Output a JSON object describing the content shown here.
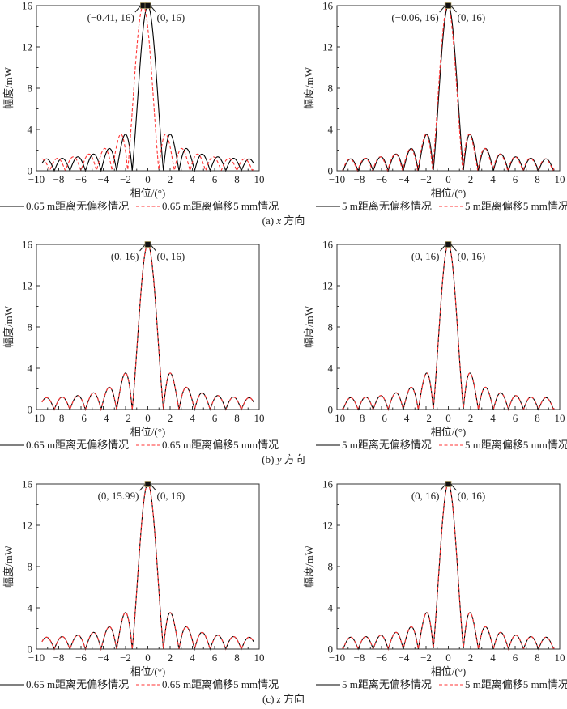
{
  "chart_data": [
    {
      "type": "line",
      "panel": "a-left",
      "xlabel": "相位/(°)",
      "ylabel": "幅度/mW",
      "xlim": [
        -10,
        10
      ],
      "ylim": [
        0,
        16
      ],
      "xtick_labels": [
        "−10",
        "−8",
        "−6",
        "−4",
        "−2",
        "0",
        "2",
        "4",
        "6",
        "8",
        "10"
      ],
      "ytick_labels": [
        "0",
        "4",
        "8",
        "12",
        "16"
      ],
      "series": [
        {
          "name": "0.65 m距离无偏移情况",
          "color": "#000000",
          "style": "solid",
          "peak": 16,
          "peak_x": 0,
          "null_spacing": 1.4,
          "x_range": [
            -9.5,
            9.5
          ]
        },
        {
          "name": "0.65 m距离偏移5 mm情况",
          "color": "#ff3333",
          "style": "dashed",
          "peak": 16,
          "peak_x": -0.41,
          "null_spacing": 1.4,
          "x_range": [
            -9.5,
            9.5
          ]
        }
      ],
      "annotations": [
        {
          "text": "(−0.41, 16)",
          "x": -0.41,
          "y": 16,
          "side": "left"
        },
        {
          "text": "(0, 16)",
          "x": 0,
          "y": 16,
          "side": "right"
        }
      ]
    },
    {
      "type": "line",
      "panel": "a-right",
      "xlabel": "相位/(°)",
      "ylabel": "幅度/mW",
      "xlim": [
        -10,
        10
      ],
      "ylim": [
        0,
        16
      ],
      "xtick_labels": [
        "−10",
        "−8",
        "−6",
        "−4",
        "−2",
        "0",
        "2",
        "4",
        "6",
        "8",
        "10"
      ],
      "ytick_labels": [
        "0",
        "4",
        "8",
        "12",
        "16"
      ],
      "series": [
        {
          "name": "5 m距离无偏移情况",
          "color": "#000000",
          "style": "solid",
          "peak": 16,
          "peak_x": 0,
          "null_spacing": 1.35,
          "x_range": [
            -9.5,
            9.5
          ]
        },
        {
          "name": "5 m距离偏移5 mm情况",
          "color": "#ff3333",
          "style": "dashed",
          "peak": 16,
          "peak_x": -0.06,
          "null_spacing": 1.35,
          "x_range": [
            -9.5,
            9.5
          ]
        }
      ],
      "annotations": [
        {
          "text": "(−0.06, 16)",
          "x": -0.06,
          "y": 16,
          "side": "left"
        },
        {
          "text": "(0, 16)",
          "x": 0,
          "y": 16,
          "side": "right"
        }
      ]
    },
    {
      "type": "line",
      "panel": "b-left",
      "xlabel": "相位/(°)",
      "ylabel": "幅度/mW",
      "xlim": [
        -10,
        10
      ],
      "ylim": [
        0,
        16
      ],
      "xtick_labels": [
        "−10",
        "−8",
        "−6",
        "−4",
        "−2",
        "0",
        "2",
        "4",
        "6",
        "8",
        "10"
      ],
      "ytick_labels": [
        "0",
        "4",
        "8",
        "12",
        "16"
      ],
      "series": [
        {
          "name": "0.65 m距离无偏移情况",
          "color": "#000000",
          "style": "solid",
          "peak": 16,
          "peak_x": 0,
          "null_spacing": 1.4,
          "x_range": [
            -9.5,
            9.5
          ]
        },
        {
          "name": "0.65 m距离偏移5 mm情况",
          "color": "#ff3333",
          "style": "dashed",
          "peak": 16,
          "peak_x": 0,
          "null_spacing": 1.4,
          "x_range": [
            -9.5,
            9.5
          ]
        }
      ],
      "annotations": [
        {
          "text": "(0, 16)",
          "x": 0,
          "y": 16,
          "side": "left"
        },
        {
          "text": "(0, 16)",
          "x": 0,
          "y": 16,
          "side": "right"
        }
      ]
    },
    {
      "type": "line",
      "panel": "b-right",
      "xlabel": "相位/(°)",
      "ylabel": "幅度/mW",
      "xlim": [
        -10,
        10
      ],
      "ylim": [
        0,
        16
      ],
      "xtick_labels": [
        "−10",
        "−8",
        "−6",
        "−4",
        "−2",
        "0",
        "2",
        "4",
        "6",
        "8",
        "10"
      ],
      "ytick_labels": [
        "0",
        "4",
        "8",
        "12",
        "16"
      ],
      "series": [
        {
          "name": "5 m距离无偏移情况",
          "color": "#000000",
          "style": "solid",
          "peak": 16,
          "peak_x": 0,
          "null_spacing": 1.35,
          "x_range": [
            -9.5,
            9.5
          ]
        },
        {
          "name": "5 m距离偏移5 mm情况",
          "color": "#ff3333",
          "style": "dashed",
          "peak": 16,
          "peak_x": 0,
          "null_spacing": 1.35,
          "x_range": [
            -9.5,
            9.5
          ]
        }
      ],
      "annotations": [
        {
          "text": "(0, 16)",
          "x": 0,
          "y": 16,
          "side": "left"
        },
        {
          "text": "(0, 16)",
          "x": 0,
          "y": 16,
          "side": "right"
        }
      ]
    },
    {
      "type": "line",
      "panel": "c-left",
      "xlabel": "相位/(°)",
      "ylabel": "幅度/mW",
      "xlim": [
        -10,
        10
      ],
      "ylim": [
        0,
        16
      ],
      "xtick_labels": [
        "−10",
        "−8",
        "−6",
        "−4",
        "−2",
        "0",
        "2",
        "4",
        "6",
        "8",
        "10"
      ],
      "ytick_labels": [
        "0",
        "4",
        "8",
        "12",
        "16"
      ],
      "series": [
        {
          "name": "0.65 m距离无偏移情况",
          "color": "#000000",
          "style": "solid",
          "peak": 16,
          "peak_x": 0,
          "null_spacing": 1.4,
          "x_range": [
            -9.5,
            9.5
          ]
        },
        {
          "name": "0.65 m距离偏移5 mm情况",
          "color": "#ff3333",
          "style": "dashed",
          "peak": 15.99,
          "peak_x": 0,
          "null_spacing": 1.4,
          "x_range": [
            -9.5,
            9.5
          ]
        }
      ],
      "annotations": [
        {
          "text": "(0, 15.99)",
          "x": 0,
          "y": 15.99,
          "side": "left"
        },
        {
          "text": "(0, 16)",
          "x": 0,
          "y": 16,
          "side": "right"
        }
      ]
    },
    {
      "type": "line",
      "panel": "c-right",
      "xlabel": "相位/(°)",
      "ylabel": "幅度/mW",
      "xlim": [
        -10,
        10
      ],
      "ylim": [
        0,
        16
      ],
      "xtick_labels": [
        "−10",
        "−8",
        "−6",
        "−4",
        "−2",
        "0",
        "2",
        "4",
        "6",
        "8",
        "10"
      ],
      "ytick_labels": [
        "0",
        "4",
        "8",
        "12",
        "16"
      ],
      "series": [
        {
          "name": "5 m距离无偏移情况",
          "color": "#000000",
          "style": "solid",
          "peak": 16,
          "peak_x": 0,
          "null_spacing": 1.35,
          "x_range": [
            -9.5,
            9.5
          ]
        },
        {
          "name": "5 m距离偏移5 mm情况",
          "color": "#ff3333",
          "style": "dashed",
          "peak": 16,
          "peak_x": 0,
          "null_spacing": 1.35,
          "x_range": [
            -9.5,
            9.5
          ]
        }
      ],
      "annotations": [
        {
          "text": "(0, 16)",
          "x": 0,
          "y": 16,
          "side": "left"
        },
        {
          "text": "(0, 16)",
          "x": 0,
          "y": 16,
          "side": "right"
        }
      ]
    }
  ],
  "captions": [
    {
      "label": "(a)",
      "axis": "x",
      "suffix": "方向"
    },
    {
      "label": "(b)",
      "axis": "y",
      "suffix": "方向"
    },
    {
      "label": "(c)",
      "axis": "z",
      "suffix": "方向"
    }
  ]
}
